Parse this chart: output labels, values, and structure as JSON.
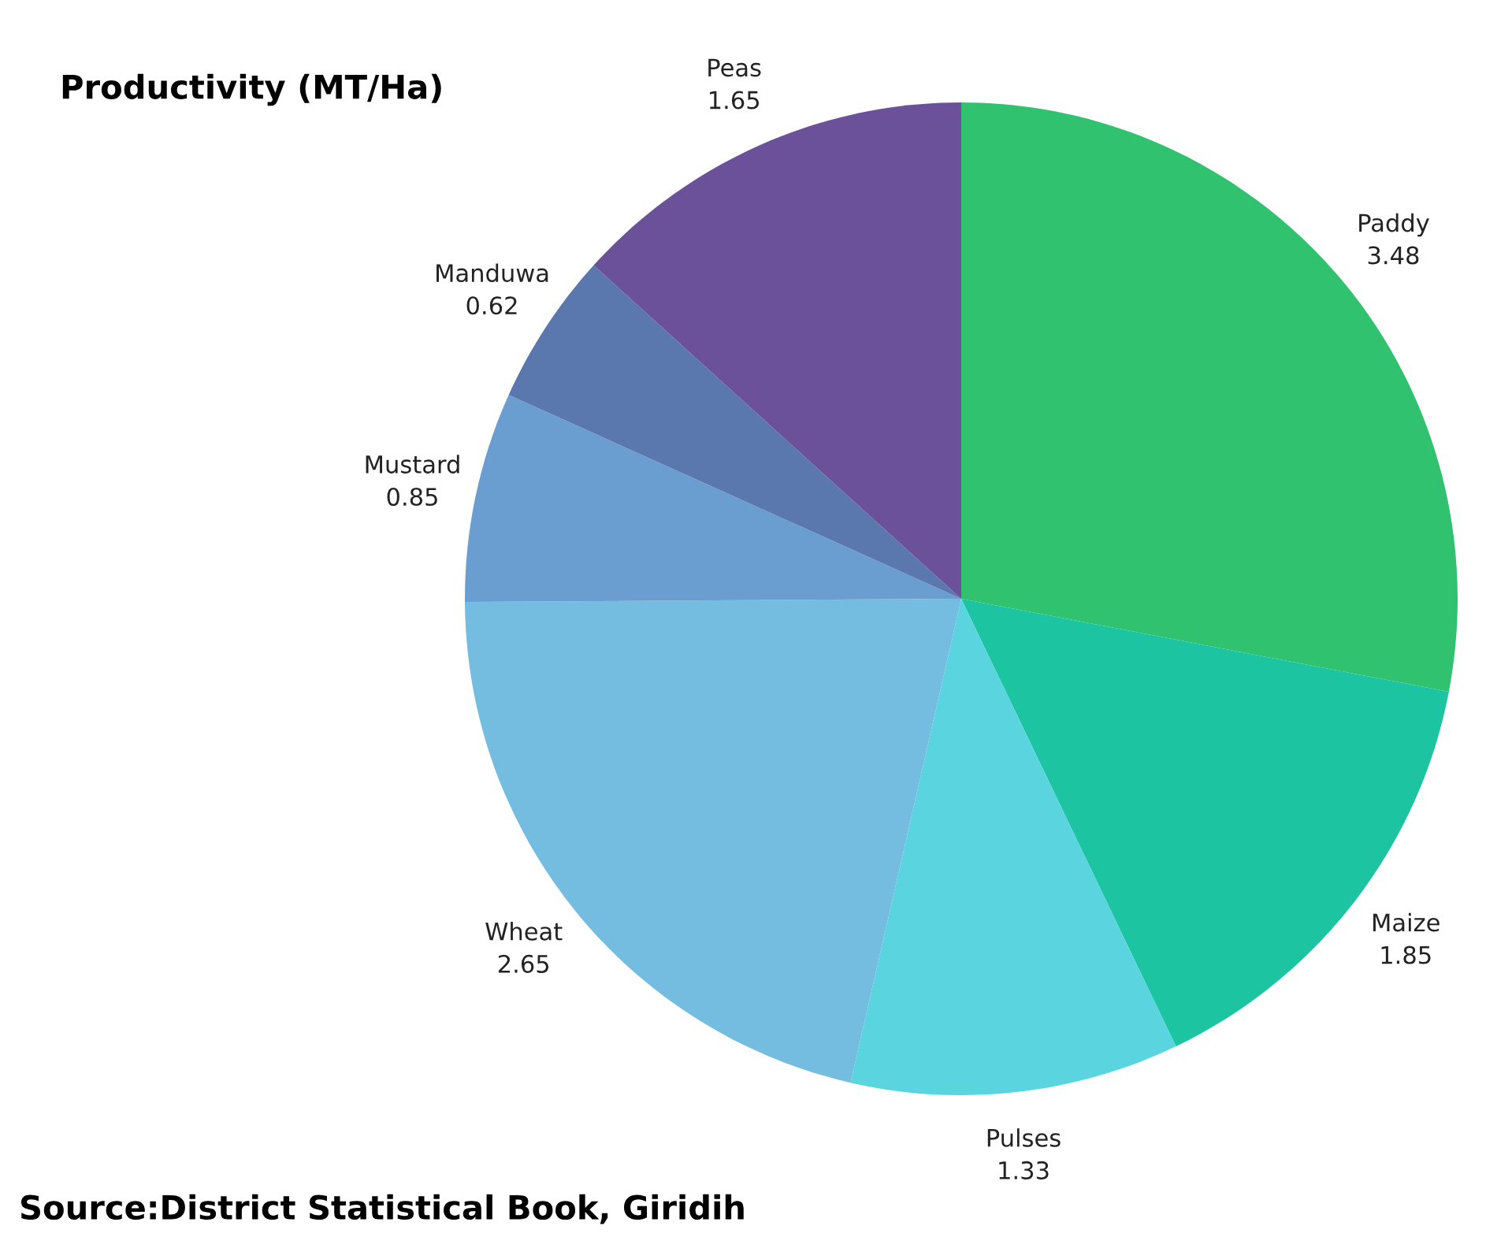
{
  "chart_data": {
    "type": "pie",
    "title": "Productivity (MT/Ha)",
    "categories": [
      "Paddy",
      "Maize",
      "Pulses",
      "Wheat",
      "Mustard",
      "Manduwa",
      "Peas"
    ],
    "values": [
      3.48,
      1.85,
      1.33,
      2.65,
      0.85,
      0.62,
      1.65
    ],
    "colors": [
      "#31c270",
      "#1dc4a2",
      "#5ad5e0",
      "#74bde0",
      "#6a9ed0",
      "#5a77ae",
      "#6a519a"
    ],
    "data_labels": true,
    "legend": false,
    "annotations": [
      "Source:District Statistical Book, Giridih"
    ]
  }
}
